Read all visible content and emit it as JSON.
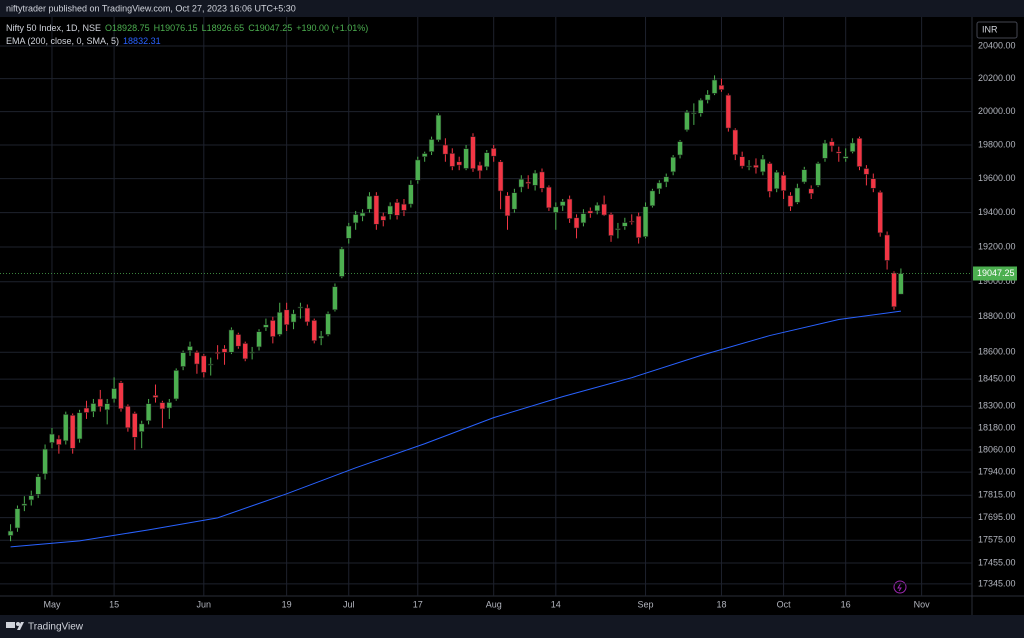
{
  "header": {
    "publisher": "niftytrader published on TradingView.com, Oct 27, 2023 16:06 UTC+5:30",
    "footer": "TradingView"
  },
  "chart_data": {
    "type": "candlestick",
    "symbol": "Nifty 50 Index, 1D, NSE",
    "ohlc_legend": {
      "open": "O18928.75",
      "high": "H19076.15",
      "low": "L18926.65",
      "close": "C19047.25",
      "change": "+190.00 (+1.01%)"
    },
    "currency": "INR",
    "last_price_label": "19047.25",
    "log_scale": true,
    "grid": true,
    "up_color": "#4caf50",
    "down_color": "#f23645",
    "xlim": [
      -1.53,
      139.3
    ],
    "xticks": [
      {
        "value": 6,
        "label": "May"
      },
      {
        "value": 15,
        "label": "15"
      },
      {
        "value": 28,
        "label": "Jun"
      },
      {
        "value": 40,
        "label": "19"
      },
      {
        "value": 49,
        "label": "Jul"
      },
      {
        "value": 59,
        "label": "17"
      },
      {
        "value": 70,
        "label": "Aug"
      },
      {
        "value": 79,
        "label": "14"
      },
      {
        "value": 92,
        "label": "Sep"
      },
      {
        "value": 103,
        "label": "18"
      },
      {
        "value": 112,
        "label": "Oct"
      },
      {
        "value": 121,
        "label": "16"
      },
      {
        "value": 132,
        "label": "Nov"
      }
    ],
    "ylim": [
      17282,
      20579
    ],
    "yticks": [
      {
        "value": 20400,
        "label": "20400.00"
      },
      {
        "value": 20200,
        "label": "20200.00"
      },
      {
        "value": 20000,
        "label": "20000.00"
      },
      {
        "value": 19800,
        "label": "19800.00"
      },
      {
        "value": 19600,
        "label": "19600.00"
      },
      {
        "value": 19400,
        "label": "19400.00"
      },
      {
        "value": 19200,
        "label": "19200.00"
      },
      {
        "value": 19000,
        "label": "19000.00"
      },
      {
        "value": 18800,
        "label": "18800.00"
      },
      {
        "value": 18600,
        "label": "18600.00"
      },
      {
        "value": 18450,
        "label": "18450.00"
      },
      {
        "value": 18300,
        "label": "18300.00"
      },
      {
        "value": 18180,
        "label": "18180.00"
      },
      {
        "value": 18060,
        "label": "18060.00"
      },
      {
        "value": 17940,
        "label": "17940.00"
      },
      {
        "value": 17815,
        "label": "17815.00"
      },
      {
        "value": 17695,
        "label": "17695.00"
      },
      {
        "value": 17575,
        "label": "17575.00"
      },
      {
        "value": 17455,
        "label": "17455.00"
      },
      {
        "value": 17345,
        "label": "17345.00"
      }
    ],
    "open": [
      17600,
      17640,
      17760,
      17790,
      17820,
      17930,
      18100,
      18120,
      18110,
      18250,
      18120,
      18290,
      18270,
      18340,
      18280,
      18340,
      18430,
      18300,
      18260,
      18160,
      18220,
      18360,
      18320,
      18290,
      18340,
      18520,
      18610,
      18600,
      18580,
      18530,
      18600,
      18620,
      18600,
      18700,
      18650,
      18600,
      18630,
      18740,
      18780,
      18700,
      18840,
      18770,
      18850,
      18850,
      18780,
      18680,
      18700,
      18840,
      19030,
      19250,
      19340,
      19380,
      19420,
      19500,
      19380,
      19390,
      19460,
      19450,
      19450,
      19590,
      19730,
      19760,
      19830,
      19800,
      19750,
      19700,
      19660,
      19850,
      19680,
      19670,
      19780,
      19700,
      19500,
      19420,
      19550,
      19580,
      19560,
      19640,
      19550,
      19400,
      19440,
      19480,
      19370,
      19340,
      19410,
      19410,
      19450,
      19390,
      19300,
      19320,
      19350,
      19380,
      19260,
      19440,
      19540,
      19580,
      19640,
      19740,
      19890,
      19990,
      19990,
      20070,
      20110,
      20160,
      20100,
      19890,
      19730,
      19670,
      19680,
      19640,
      19690,
      19540,
      19620,
      19500,
      19460,
      19580,
      19540,
      19560,
      19720,
      19820,
      19760,
      19720,
      19760,
      19840,
      19660,
      19600,
      19520,
      19270,
      19050,
      18928.75
    ],
    "high": [
      17660,
      17760,
      17810,
      17840,
      17930,
      18090,
      18180,
      18140,
      18270,
      18260,
      18280,
      18330,
      18340,
      18390,
      18340,
      18460,
      18440,
      18310,
      18270,
      18220,
      18340,
      18420,
      18330,
      18340,
      18510,
      18610,
      18660,
      18610,
      18590,
      18570,
      18640,
      18640,
      18740,
      18710,
      18660,
      18630,
      18730,
      18790,
      18800,
      18880,
      18880,
      18840,
      18880,
      18870,
      18790,
      18720,
      18830,
      18990,
      19200,
      19340,
      19410,
      19420,
      19520,
      19520,
      19400,
      19460,
      19480,
      19480,
      19590,
      19730,
      19760,
      19850,
      19990,
      19840,
      19780,
      19730,
      19800,
      19870,
      19700,
      19770,
      19800,
      19710,
      19520,
      19540,
      19620,
      19620,
      19650,
      19660,
      19560,
      19460,
      19480,
      19500,
      19390,
      19420,
      19430,
      19460,
      19500,
      19400,
      19340,
      19370,
      19390,
      19400,
      19460,
      19540,
      19590,
      19630,
      19740,
      19830,
      20010,
      20050,
      20080,
      20130,
      20220,
      20200,
      20110,
      19900,
      19760,
      19710,
      19720,
      19740,
      19700,
      19650,
      19640,
      19520,
      19570,
      19670,
      19560,
      19700,
      19830,
      19840,
      19790,
      19780,
      19840,
      19850,
      19680,
      19630,
      19530,
      19290,
      19060,
      19076.15
    ],
    "low": [
      17570,
      17620,
      17730,
      17760,
      17800,
      17900,
      18070,
      18040,
      18090,
      18040,
      18100,
      18230,
      18240,
      18270,
      18200,
      18320,
      18270,
      18160,
      18060,
      18070,
      18200,
      18320,
      18180,
      18230,
      18330,
      18500,
      18580,
      18480,
      18460,
      18470,
      18560,
      18530,
      18590,
      18620,
      18550,
      18560,
      18610,
      18720,
      18650,
      18690,
      18720,
      18730,
      18790,
      18750,
      18650,
      18640,
      18690,
      18830,
      19020,
      19220,
      19300,
      19350,
      19400,
      19300,
      19320,
      19360,
      19360,
      19380,
      19430,
      19570,
      19700,
      19740,
      19820,
      19700,
      19650,
      19650,
      19650,
      19640,
      19600,
      19650,
      19700,
      19420,
      19300,
      19400,
      19520,
      19540,
      19530,
      19520,
      19410,
      19300,
      19410,
      19340,
      19250,
      19320,
      19370,
      19390,
      19380,
      19230,
      19250,
      19300,
      19330,
      19220,
      19250,
      19430,
      19510,
      19550,
      19620,
      19720,
      19880,
      19920,
      19970,
      20050,
      20100,
      20120,
      19880,
      19710,
      19660,
      19650,
      19630,
      19620,
      19490,
      19520,
      19480,
      19410,
      19450,
      19570,
      19480,
      19550,
      19700,
      19760,
      19700,
      19700,
      19750,
      19650,
      19560,
      19520,
      19260,
      19070,
      18840,
      18926.65
    ],
    "close": [
      17624,
      17743,
      17769,
      17813,
      17915,
      18065,
      18147,
      18089,
      18255,
      18069,
      18264,
      18265,
      18315,
      18297,
      18314,
      18398,
      18286,
      18181,
      18129,
      18203,
      18314,
      18348,
      18285,
      18321,
      18499,
      18598,
      18633,
      18534,
      18487,
      18534,
      18593,
      18599,
      18726,
      18634,
      18563,
      18601,
      18716,
      18755,
      18688,
      18826,
      18755,
      18817,
      18856,
      18771,
      18665,
      18691,
      18817,
      18972,
      19189,
      19322,
      19389,
      19398,
      19497,
      19332,
      19355,
      19439,
      19384,
      19413,
      19564,
      19711,
      19749,
      19833,
      19979,
      19745,
      19672,
      19680,
      19778,
      19659,
      19646,
      19754,
      19733,
      19527,
      19381,
      19517,
      19597,
      19571,
      19633,
      19543,
      19428,
      19434,
      19465,
      19365,
      19310,
      19394,
      19396,
      19444,
      19386,
      19266,
      19307,
      19342,
      19347,
      19254,
      19435,
      19528,
      19575,
      19611,
      19727,
      19820,
      19996,
      19993,
      20070,
      20103,
      20192,
      20133,
      19901,
      19742,
      19674,
      19675,
      19665,
      19716,
      19524,
      19638,
      19529,
      19436,
      19545,
      19653,
      19512,
      19690,
      19811,
      19794,
      19751,
      19731,
      19812,
      19671,
      19625,
      19543,
      19282,
      19122,
      18857,
      19047.25
    ],
    "ema": {
      "name": "EMA (200, close, 0, SMA, 5)",
      "value_label": "18832.31",
      "color": "#2962ff",
      "x": [
        0,
        10,
        20,
        30,
        40,
        50,
        60,
        70,
        80,
        90,
        100,
        110,
        120,
        129
      ],
      "values": [
        17540,
        17572,
        17630,
        17694,
        17823,
        17963,
        18094,
        18237,
        18353,
        18458,
        18582,
        18694,
        18785,
        18832.31
      ]
    }
  }
}
